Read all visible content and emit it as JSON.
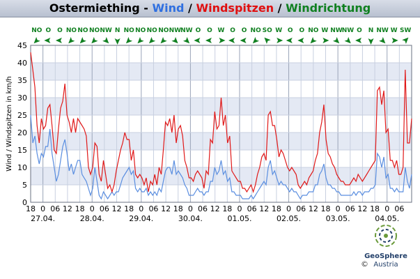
{
  "title": {
    "place": "Ostermiething",
    "sep1": " - ",
    "wind": "Wind",
    "sep2": " / ",
    "gust": "Windspitzen",
    "sep3": " / ",
    "direction": "Windrichtung"
  },
  "logo": {
    "name": "GeoSphere",
    "sub": "Austria",
    "copyright": "©"
  },
  "colors": {
    "wind": "#5a8ee0",
    "gust": "#e01818",
    "direction": "#108020",
    "band": "#e4e9f4"
  },
  "chart_data": {
    "type": "line",
    "title": "Ostermiething - Wind / Windspitzen / Windrichtung",
    "ylabel": "Wind / Windspitzen in km/h",
    "xlabel": "",
    "ylim": [
      0,
      45
    ],
    "yticks": [
      0,
      5,
      10,
      15,
      20,
      25,
      30,
      35,
      40,
      45
    ],
    "x_range_hours": [
      0,
      186
    ],
    "x_unit": "hours since 26.04. 18:00",
    "x_tick_labels": [
      "18",
      "0",
      "06",
      "12",
      "18",
      "0",
      "06",
      "12",
      "18",
      "0",
      "06",
      "12",
      "18",
      "0",
      "06",
      "12",
      "18",
      "0",
      "06",
      "12",
      "18",
      "0",
      "06",
      "12",
      "18",
      "0",
      "06",
      "12",
      "18",
      "0",
      "06"
    ],
    "date_labels": [
      "27.04.",
      "28.04.",
      "29.04.",
      "30.04.",
      "01.05.",
      "02.05.",
      "03.05.",
      "04.05."
    ],
    "grid": true,
    "legend": "title",
    "series": [
      {
        "name": "Windspitzen",
        "color": "#e01818",
        "values": [
          43,
          38,
          33,
          22,
          17,
          24,
          21,
          22,
          27,
          28,
          22,
          15,
          14,
          21,
          27,
          29,
          34,
          25,
          23,
          20,
          24,
          20,
          24,
          23,
          22,
          21,
          19,
          10,
          8,
          10,
          17,
          16,
          8,
          6,
          12,
          8,
          4,
          5,
          3,
          5,
          9,
          12,
          15,
          17,
          20,
          18,
          18,
          12,
          15,
          8,
          7,
          8,
          7,
          5,
          7,
          3,
          6,
          5,
          8,
          5,
          10,
          8,
          15,
          23,
          22,
          24,
          20,
          25,
          17,
          21,
          22,
          19,
          12,
          10,
          7,
          7,
          6,
          8,
          9,
          8,
          7,
          4,
          9,
          8,
          18,
          17,
          26,
          21,
          22,
          30,
          22,
          25,
          17,
          19,
          9,
          8,
          7,
          6,
          6,
          4,
          4,
          3,
          4,
          5,
          3,
          5,
          8,
          10,
          13,
          14,
          12,
          25,
          26,
          22,
          22,
          18,
          13,
          15,
          14,
          12,
          10,
          9,
          10,
          9,
          8,
          5,
          4,
          5,
          6,
          5,
          7,
          8,
          9,
          12,
          14,
          20,
          23,
          28,
          18,
          14,
          13,
          11,
          10,
          8,
          7,
          6,
          6,
          5,
          5,
          5,
          6,
          7,
          6,
          8,
          7,
          6,
          7,
          8,
          9,
          10,
          11,
          12,
          32,
          33,
          28,
          32,
          20,
          21,
          12,
          12,
          10,
          12,
          8,
          8,
          10,
          38,
          17,
          17,
          24
        ]
      },
      {
        "name": "Wind",
        "color": "#5a8ee0",
        "values": [
          25,
          17,
          19,
          14,
          11,
          14,
          13,
          16,
          16,
          21,
          14,
          10,
          6,
          8,
          12,
          16,
          18,
          14,
          9,
          11,
          8,
          10,
          12,
          12,
          8,
          7,
          6,
          4,
          2,
          4,
          10,
          6,
          2,
          1,
          3,
          2,
          1,
          2,
          3,
          2,
          3,
          3,
          5,
          7,
          8,
          9,
          10,
          8,
          9,
          4,
          3,
          4,
          3,
          3,
          4,
          2,
          3,
          2,
          3,
          2,
          4,
          3,
          6,
          9,
          10,
          10,
          8,
          12,
          8,
          9,
          8,
          7,
          5,
          4,
          2,
          2,
          2,
          3,
          4,
          3,
          3,
          2,
          3,
          3,
          6,
          6,
          10,
          8,
          9,
          12,
          8,
          9,
          6,
          7,
          3,
          3,
          2,
          2,
          2,
          1,
          1,
          1,
          1,
          2,
          1,
          2,
          3,
          4,
          5,
          6,
          5,
          10,
          12,
          8,
          9,
          7,
          5,
          6,
          5,
          5,
          4,
          3,
          4,
          3,
          3,
          2,
          1,
          2,
          2,
          2,
          3,
          3,
          3,
          5,
          5,
          8,
          9,
          11,
          7,
          5,
          5,
          4,
          4,
          3,
          3,
          2,
          2,
          2,
          2,
          2,
          2,
          3,
          2,
          3,
          3,
          2,
          3,
          3,
          3,
          4,
          4,
          5,
          14,
          13,
          10,
          13,
          7,
          8,
          4,
          4,
          3,
          4,
          3,
          3,
          3,
          10,
          6,
          4,
          8
        ]
      },
      {
        "name": "Windrichtung",
        "labels": [
          "NO",
          "O",
          "O",
          "NO",
          "NO",
          "NO",
          "NW",
          "N",
          "NO",
          "NO",
          "NO",
          "NO",
          "NW",
          "NW",
          "O",
          "O",
          "W",
          "O",
          "O",
          "NO",
          "SO",
          "W",
          "O",
          "O",
          "NO",
          "W",
          "NW",
          "NW",
          "O",
          "N",
          "NW",
          "W",
          "SW"
        ],
        "degrees": [
          45,
          90,
          90,
          45,
          45,
          45,
          315,
          0,
          45,
          45,
          45,
          45,
          315,
          315,
          90,
          90,
          270,
          90,
          90,
          45,
          135,
          270,
          90,
          90,
          45,
          270,
          315,
          315,
          90,
          0,
          315,
          270,
          225
        ]
      }
    ]
  }
}
